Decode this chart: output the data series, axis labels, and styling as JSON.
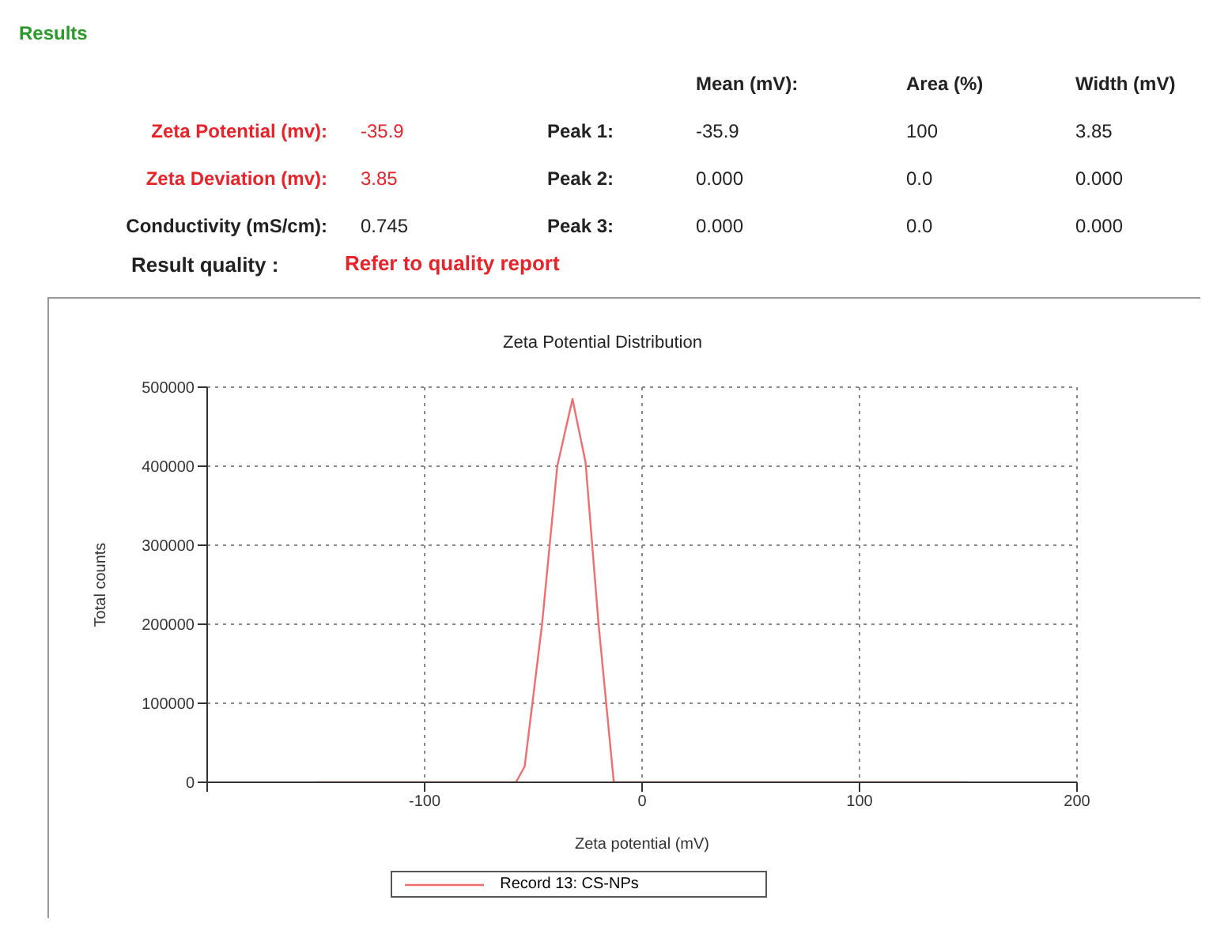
{
  "chart_data": {
    "type": "line",
    "title": "Zeta Potential Distribution",
    "xlabel": "Zeta potential (mV)",
    "ylabel": "Total counts",
    "annotations": [
      "Results",
      "Mean (mV):",
      "Area (%)",
      "Width (mV)",
      "Zeta Potential (mv):",
      "-35.9",
      "Peak 1:",
      "-35.9",
      "100",
      "3.85",
      "Zeta Deviation (mv):",
      "3.85",
      "Peak 2:",
      "0.000",
      "0.0",
      "0.000",
      "Conductivity (mS/cm):",
      "0.745",
      "Peak 3:",
      "0.000",
      "0.0",
      "0.000",
      "Result quality :",
      "Refer to quality report"
    ],
    "x": [
      -150,
      -58,
      -54,
      -46,
      -39,
      -32,
      -26,
      -20,
      -13,
      150
    ],
    "series": [
      {
        "name": "Record 13: CS-NPs",
        "color": "#f26d6d",
        "values": [
          0,
          0,
          20000,
          200000,
          400000,
          485000,
          405000,
          200000,
          0,
          0
        ]
      }
    ],
    "xlim": [
      -200,
      200
    ],
    "xticks": [
      {
        "value": -200,
        "label": null
      },
      -100,
      0,
      100,
      200
    ],
    "ylim": [
      0,
      500000
    ],
    "yticks": [
      0,
      100000,
      200000,
      300000,
      400000,
      500000
    ],
    "grid": true,
    "legend": "bottom",
    "marker": "none",
    "line_style": "solid"
  }
}
